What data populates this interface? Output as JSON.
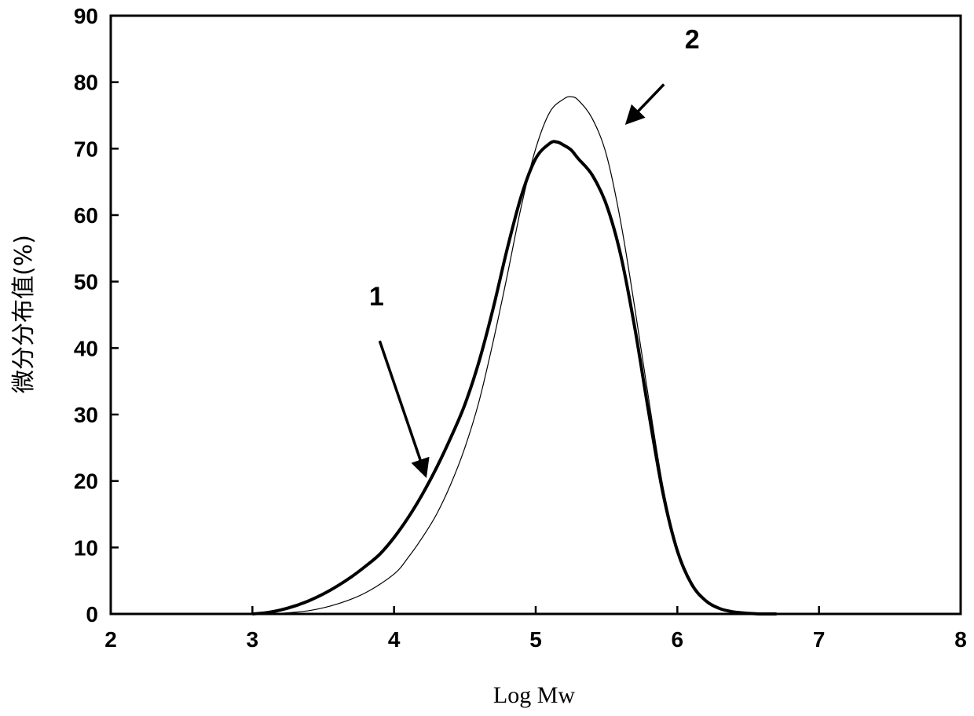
{
  "chart_data": {
    "type": "line",
    "xlabel": "Log Mw",
    "ylabel": "微分分布值(%)",
    "xlim": [
      2,
      8
    ],
    "ylim": [
      0,
      90
    ],
    "xticks": [
      2,
      3,
      4,
      5,
      6,
      7,
      8
    ],
    "yticks": [
      0,
      10,
      20,
      30,
      40,
      50,
      60,
      70,
      80,
      90
    ],
    "grid": false,
    "series": [
      {
        "name": "1",
        "color": "#000000",
        "x": [
          3.0,
          3.1,
          3.2,
          3.3,
          3.4,
          3.5,
          3.6,
          3.7,
          3.8,
          3.9,
          4.0,
          4.1,
          4.2,
          4.3,
          4.4,
          4.5,
          4.6,
          4.7,
          4.8,
          4.9,
          5.0,
          5.1,
          5.15,
          5.2,
          5.25,
          5.3,
          5.4,
          5.5,
          5.6,
          5.7,
          5.8,
          5.9,
          6.0,
          6.1,
          6.2,
          6.3,
          6.4,
          6.5,
          6.6,
          6.7
        ],
        "y": [
          0,
          0.2,
          0.6,
          1.2,
          2.0,
          3.0,
          4.2,
          5.6,
          7.2,
          9.0,
          11.5,
          14.5,
          18.0,
          22.0,
          26.5,
          31.5,
          38.0,
          46.0,
          55.0,
          63.0,
          68.5,
          70.8,
          71.0,
          70.5,
          69.8,
          68.5,
          66.0,
          61.5,
          54.0,
          43.0,
          30.0,
          18.0,
          9.5,
          4.5,
          2.0,
          0.8,
          0.3,
          0.1,
          0,
          0
        ]
      },
      {
        "name": "2",
        "color": "#000000",
        "x": [
          3.0,
          3.2,
          3.4,
          3.6,
          3.8,
          4.0,
          4.1,
          4.2,
          4.3,
          4.4,
          4.5,
          4.6,
          4.7,
          4.8,
          4.9,
          5.0,
          5.1,
          5.2,
          5.25,
          5.3,
          5.4,
          5.5,
          5.6,
          5.7,
          5.8,
          5.9,
          6.0,
          6.1,
          6.2,
          6.3,
          6.4,
          6.5,
          6.6,
          6.7
        ],
        "y": [
          0,
          0.1,
          0.5,
          1.5,
          3.2,
          6.0,
          8.5,
          11.5,
          15.0,
          19.5,
          25.0,
          32.0,
          41.0,
          51.0,
          61.5,
          70.0,
          75.5,
          77.5,
          77.8,
          77.3,
          74.5,
          69.0,
          59.0,
          46.0,
          32.0,
          19.0,
          10.0,
          4.8,
          2.1,
          0.9,
          0.3,
          0.1,
          0,
          0
        ]
      }
    ],
    "annotations": [
      {
        "text": "1",
        "target_x": 4.22,
        "target_y": 21
      },
      {
        "text": "2",
        "target_x": 5.65,
        "target_y": 74
      }
    ]
  }
}
